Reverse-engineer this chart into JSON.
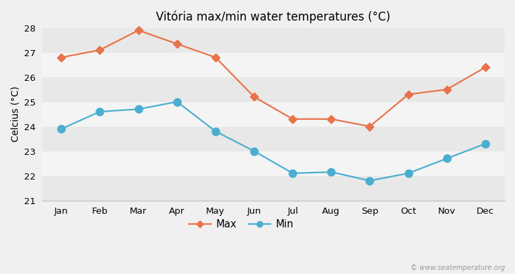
{
  "title": "Vitória max/min water temperatures (°C)",
  "ylabel": "Celcius (°C)",
  "months": [
    "Jan",
    "Feb",
    "Mar",
    "Apr",
    "May",
    "Jun",
    "Jul",
    "Aug",
    "Sep",
    "Oct",
    "Nov",
    "Dec"
  ],
  "max_temps": [
    26.8,
    27.1,
    27.9,
    27.35,
    26.8,
    25.2,
    24.3,
    24.3,
    24.0,
    25.3,
    25.5,
    26.4
  ],
  "min_temps": [
    23.9,
    24.6,
    24.7,
    25.0,
    23.8,
    23.0,
    22.1,
    22.15,
    21.8,
    22.1,
    22.7,
    23.3
  ],
  "max_color": "#e8724a",
  "min_color": "#4baed0",
  "bg_color": "#f0f0f0",
  "band_colors": [
    "#e8e8e8",
    "#f4f4f4"
  ],
  "ylim": [
    21,
    28
  ],
  "yticks": [
    21,
    22,
    23,
    24,
    25,
    26,
    27,
    28
  ],
  "watermark": "© www.seatemperature.org",
  "marker_style_max": "D",
  "marker_style_min": "o",
  "marker_size_max": 6,
  "marker_size_min": 8,
  "line_width": 1.6
}
